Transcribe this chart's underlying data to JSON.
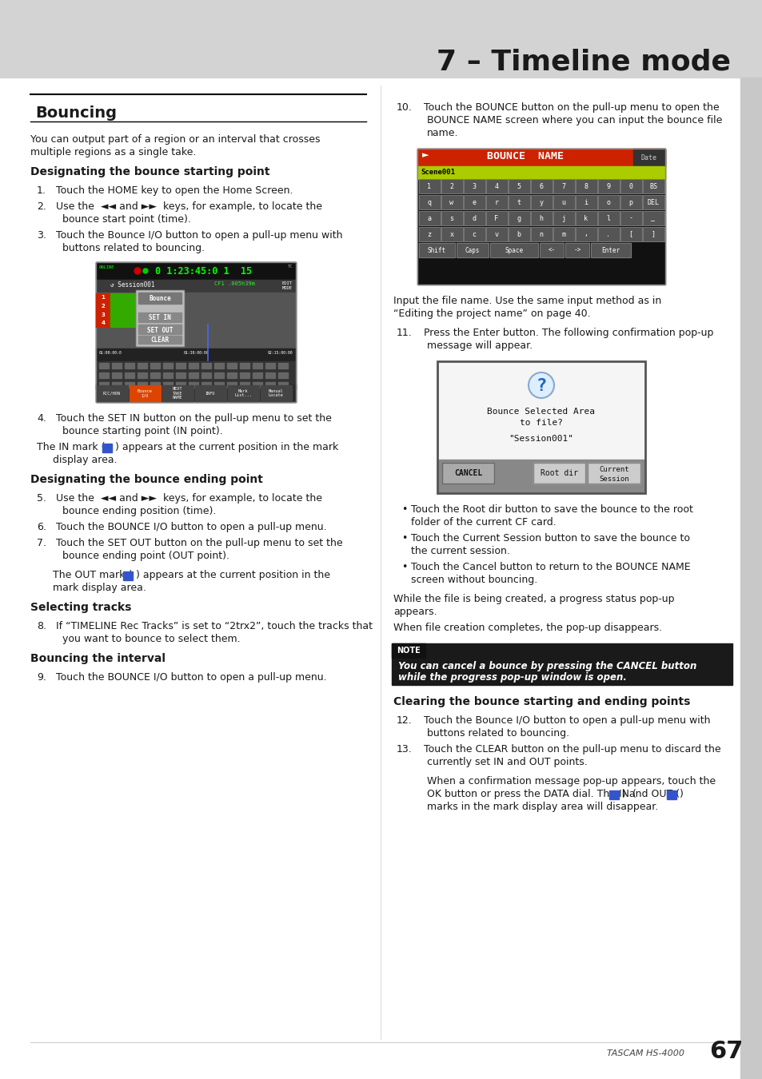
{
  "page_title": "7 – Timeline mode",
  "header_bg": "#d0d0d0",
  "section_title": "Bouncing",
  "body_bg": "#ffffff",
  "right_sidebar_bg": "#c8c8c8",
  "footer_text": "TASCAM HS-4000",
  "page_number": "67",
  "figw": 9.54,
  "figh": 13.5,
  "dpi": 100
}
